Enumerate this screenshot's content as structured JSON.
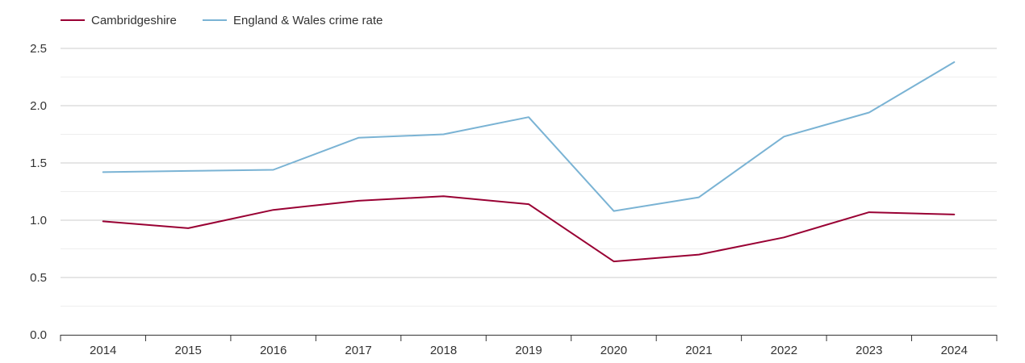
{
  "chart_data": {
    "type": "line",
    "title": "",
    "xlabel": "",
    "ylabel": "",
    "x": [
      "2014",
      "2015",
      "2016",
      "2017",
      "2018",
      "2019",
      "2020",
      "2021",
      "2022",
      "2023",
      "2024"
    ],
    "yticks": [
      "0.0",
      "0.5",
      "1.0",
      "1.5",
      "2.0",
      "2.5"
    ],
    "ylim": [
      0,
      2.5
    ],
    "grid": true,
    "legend_position": "top-left",
    "series": [
      {
        "name": "Cambridgeshire",
        "color": "#990033",
        "values": [
          0.99,
          0.93,
          1.09,
          1.17,
          1.21,
          1.14,
          0.64,
          0.7,
          0.85,
          1.07,
          1.05
        ]
      },
      {
        "name": "England & Wales crime rate",
        "color": "#7ab3d4",
        "values": [
          1.42,
          1.43,
          1.44,
          1.72,
          1.75,
          1.9,
          1.08,
          1.2,
          1.73,
          1.94,
          2.38
        ]
      }
    ]
  }
}
